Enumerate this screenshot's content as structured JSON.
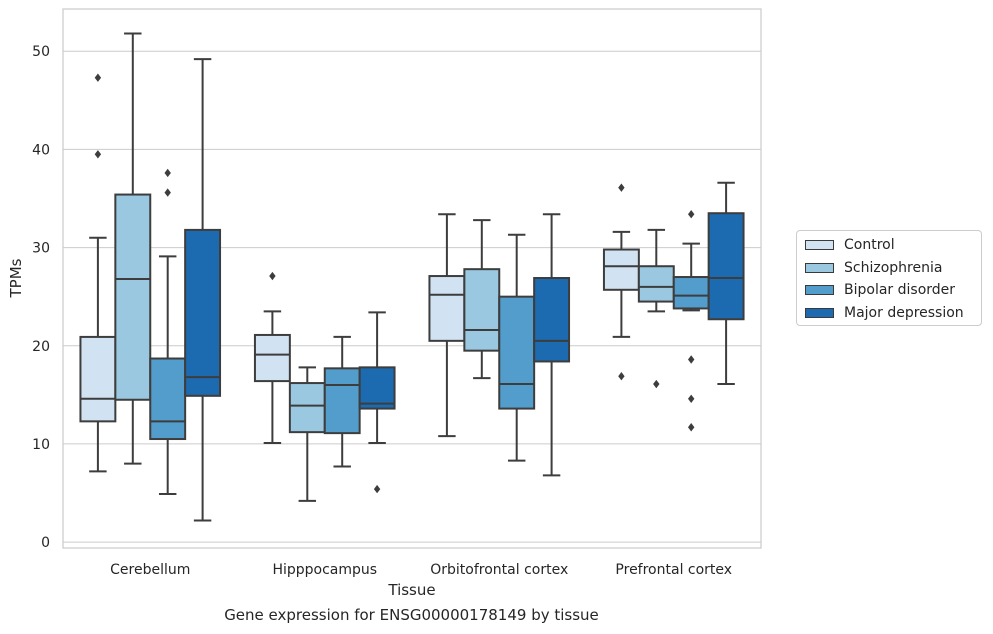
{
  "caption": "Gene expression for ENSG00000178149 by tissue",
  "chart_data": {
    "type": "box",
    "xlabel": "Tissue",
    "ylabel": "TPMs",
    "ylim": [
      -0.6,
      54.3
    ],
    "yticks": [
      0,
      10,
      20,
      30,
      40,
      50
    ],
    "grid": true,
    "legend_position": "right",
    "categories": [
      "Cerebellum",
      "Hipppocampus",
      "Orbitofrontal cortex",
      "Prefrontal cortex"
    ],
    "series": [
      {
        "name": "Control",
        "color": "#d1e3f3",
        "boxes": [
          {
            "whislo": 7.2,
            "q1": 12.3,
            "med": 14.6,
            "q3": 20.9,
            "whishi": 31.0,
            "fliers": [
              39.5,
              47.3
            ]
          },
          {
            "whislo": 10.1,
            "q1": 16.4,
            "med": 19.1,
            "q3": 21.1,
            "whishi": 23.5,
            "fliers": [
              27.1
            ]
          },
          {
            "whislo": 10.8,
            "q1": 20.5,
            "med": 25.2,
            "q3": 27.1,
            "whishi": 33.4,
            "fliers": []
          },
          {
            "whislo": 20.9,
            "q1": 25.7,
            "med": 28.1,
            "q3": 29.8,
            "whishi": 31.6,
            "fliers": [
              16.9,
              36.1
            ]
          }
        ]
      },
      {
        "name": "Schizophrenia",
        "color": "#9ac8e0",
        "boxes": [
          {
            "whislo": 8.0,
            "q1": 14.5,
            "med": 26.8,
            "q3": 35.4,
            "whishi": 51.8,
            "fliers": []
          },
          {
            "whislo": 4.2,
            "q1": 11.2,
            "med": 13.9,
            "q3": 16.2,
            "whishi": 17.8,
            "fliers": []
          },
          {
            "whislo": 16.7,
            "q1": 19.5,
            "med": 21.6,
            "q3": 27.8,
            "whishi": 32.8,
            "fliers": []
          },
          {
            "whislo": 23.5,
            "q1": 24.5,
            "med": 26.0,
            "q3": 28.1,
            "whishi": 31.8,
            "fliers": [
              16.1
            ]
          }
        ]
      },
      {
        "name": "Bipolar disorder",
        "color": "#529dcc",
        "boxes": [
          {
            "whislo": 4.9,
            "q1": 10.5,
            "med": 12.3,
            "q3": 18.7,
            "whishi": 29.1,
            "fliers": [
              35.6,
              37.6
            ]
          },
          {
            "whislo": 7.7,
            "q1": 11.1,
            "med": 16.0,
            "q3": 17.7,
            "whishi": 20.9,
            "fliers": []
          },
          {
            "whislo": 8.3,
            "q1": 13.6,
            "med": 16.1,
            "q3": 25.0,
            "whishi": 31.3,
            "fliers": []
          },
          {
            "whislo": 23.6,
            "q1": 23.8,
            "med": 25.1,
            "q3": 27.0,
            "whishi": 30.4,
            "fliers": [
              11.7,
              14.6,
              18.6,
              33.4
            ]
          }
        ]
      },
      {
        "name": "Major depression",
        "color": "#1c6aaf",
        "boxes": [
          {
            "whislo": 2.2,
            "q1": 14.9,
            "med": 16.8,
            "q3": 31.8,
            "whishi": 49.2,
            "fliers": []
          },
          {
            "whislo": 10.1,
            "q1": 13.6,
            "med": 14.1,
            "q3": 17.8,
            "whishi": 23.4,
            "fliers": [
              5.4
            ]
          },
          {
            "whislo": 6.8,
            "q1": 18.4,
            "med": 20.5,
            "q3": 26.9,
            "whishi": 33.4,
            "fliers": []
          },
          {
            "whislo": 16.1,
            "q1": 22.7,
            "med": 26.9,
            "q3": 33.5,
            "whishi": 36.6,
            "fliers": []
          }
        ]
      }
    ]
  }
}
